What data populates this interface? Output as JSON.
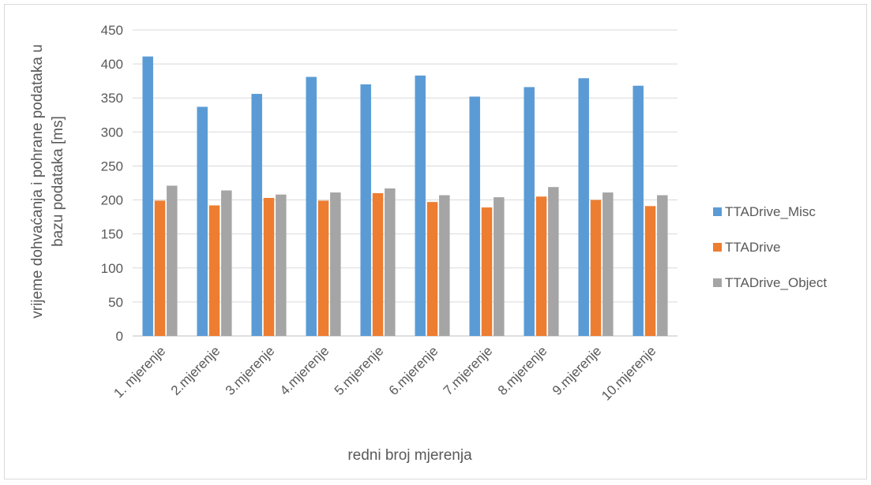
{
  "chart_data": {
    "type": "bar",
    "title": "",
    "xlabel": "redni broj mjerenja",
    "ylabel": "vrijeme dohvaćanja i pohrane podataka u bazu podataka [ms]",
    "ylim": [
      0,
      450
    ],
    "yticks": [
      0,
      50,
      100,
      150,
      200,
      250,
      300,
      350,
      400,
      450
    ],
    "grid": true,
    "legend_position": "right",
    "categories": [
      "1. mjerenje",
      "2.mjerenje",
      "3.mjerenje",
      "4.mjerenje",
      "5.mjerenje",
      "6.mjerenje",
      "7.mjerenje",
      "8.mjerenje",
      "9.mjerenje",
      "10.mjerenje"
    ],
    "series": [
      {
        "name": "TTADrive_Misc",
        "color": "#5b9bd5",
        "values": [
          411,
          337,
          356,
          381,
          370,
          383,
          352,
          366,
          379,
          368
        ]
      },
      {
        "name": "TTADrive",
        "color": "#ed7d31",
        "values": [
          199,
          192,
          203,
          199,
          210,
          197,
          189,
          205,
          200,
          191
        ]
      },
      {
        "name": "TTADrive_Object",
        "color": "#a5a5a5",
        "values": [
          221,
          214,
          208,
          211,
          217,
          207,
          204,
          219,
          211,
          207
        ]
      }
    ]
  }
}
